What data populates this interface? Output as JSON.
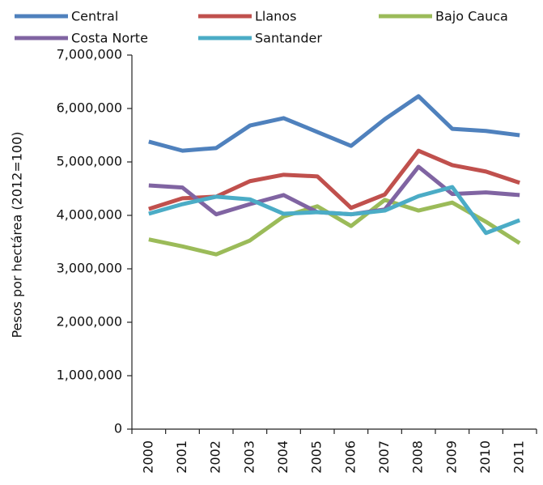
{
  "chart_data": {
    "type": "line",
    "y_label": "Pesos por hectárea (2012=100)",
    "categories": [
      "2000",
      "2001",
      "2002",
      "2003",
      "2004",
      "2005",
      "2006",
      "2007",
      "2008",
      "2009",
      "2010",
      "2011"
    ],
    "series": [
      {
        "name": "Central",
        "color": "#4f81bd",
        "values": [
          5380000,
          5210000,
          5260000,
          5680000,
          5820000,
          5560000,
          5300000,
          5800000,
          6230000,
          5620000,
          5580000,
          5500000
        ]
      },
      {
        "name": "Llanos",
        "color": "#c0504d",
        "values": [
          4120000,
          4320000,
          4350000,
          4640000,
          4760000,
          4730000,
          4140000,
          4390000,
          5210000,
          4940000,
          4820000,
          4610000
        ]
      },
      {
        "name": "Bajo Cauca",
        "color": "#9bbb59",
        "values": [
          3550000,
          3420000,
          3270000,
          3530000,
          3980000,
          4170000,
          3800000,
          4290000,
          4090000,
          4240000,
          3880000,
          3480000
        ]
      },
      {
        "name": "Costa Norte",
        "color": "#8064a2",
        "values": [
          4560000,
          4520000,
          4020000,
          4210000,
          4380000,
          4060000,
          4020000,
          4110000,
          4910000,
          4400000,
          4430000,
          4380000
        ]
      },
      {
        "name": "Santander",
        "color": "#4bacc6",
        "values": [
          4030000,
          4210000,
          4350000,
          4300000,
          4030000,
          4060000,
          4020000,
          4090000,
          4360000,
          4530000,
          3670000,
          3910000
        ]
      }
    ],
    "ylim": [
      0,
      7000000
    ],
    "yticks": [
      0,
      {
        "value": 1000000,
        "label": "1,000,000"
      },
      {
        "value": 2000000,
        "label": "2,000,000"
      },
      {
        "value": 3000000,
        "label": "3,000,000"
      },
      {
        "value": 4000000,
        "label": "4,000,000"
      },
      {
        "value": 5000000,
        "label": "5,000,000"
      },
      {
        "value": 6000000,
        "label": "6,000,000"
      },
      {
        "value": 7000000,
        "label": "7,000,000"
      }
    ],
    "grid": false
  }
}
